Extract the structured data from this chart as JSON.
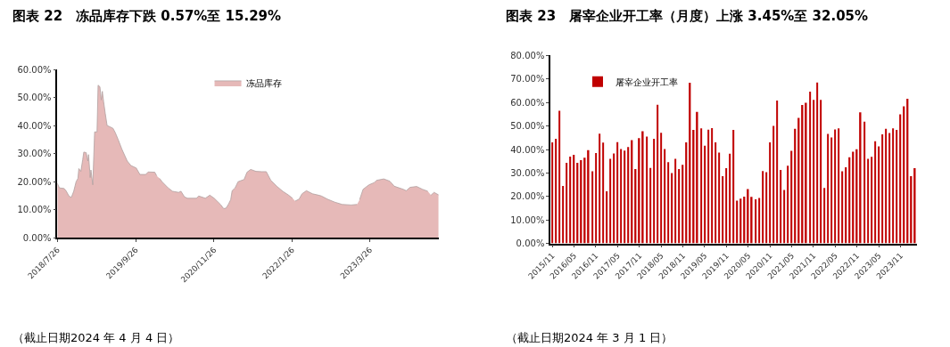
{
  "chart_data": [
    {
      "type": "area",
      "title": "图表 22　冻品库存下跌 0.57%至 15.29%",
      "annotations": [
        "（截止日期2024 年 4 月 4 日）"
      ],
      "legend": "top",
      "x": [
        "2018-07-26",
        "2018-08-06",
        "2018-08-31",
        "2018-09-11",
        "2018-09-27",
        "2018-10-10",
        "2018-10-23",
        "2018-11-05",
        "2018-11-15",
        "2018-11-20",
        "2018-12-01",
        "2018-12-11",
        "2018-12-17",
        "2018-12-30",
        "2019-01-08",
        "2019-01-12",
        "2019-01-21",
        "2019-01-25",
        "2019-02-04",
        "2019-02-14",
        "2019-02-27",
        "2019-03-05",
        "2019-03-15",
        "2019-03-22",
        "2019-03-28",
        "2019-04-04",
        "2019-04-13",
        "2019-04-23",
        "2019-05-25",
        "2019-06-07",
        "2019-06-24",
        "2019-07-13",
        "2019-08-11",
        "2019-08-31",
        "2019-09-29",
        "2019-10-19",
        "2019-11-20",
        "2019-12-03",
        "2020-01-08",
        "2020-01-19",
        "2020-01-25",
        "2020-02-03",
        "2020-02-17",
        "2020-03-21",
        "2020-04-14",
        "2020-05-17",
        "2020-05-30",
        "2020-06-18",
        "2020-07-04",
        "2020-08-22",
        "2020-09-04",
        "2020-10-10",
        "2020-11-03",
        "2020-11-27",
        "2020-12-30",
        "2021-01-18",
        "2021-01-31",
        "2021-02-13",
        "2021-02-25",
        "2021-03-05",
        "2021-03-21",
        "2021-04-06",
        "2021-04-26",
        "2021-05-09",
        "2021-05-25",
        "2021-06-14",
        "2021-07-13",
        "2021-08-14",
        "2021-09-07",
        "2021-10-02",
        "2021-11-03",
        "2021-12-06",
        "2022-01-07",
        "2022-01-28",
        "2022-02-02",
        "2022-02-12",
        "2022-03-05",
        "2022-03-21",
        "2022-04-14",
        "2022-05-17",
        "2022-06-19",
        "2022-07-05",
        "2022-08-06",
        "2022-09-16",
        "2022-10-26",
        "2022-12-14",
        "2023-01-15",
        "2023-01-24",
        "2023-01-29",
        "2023-02-17",
        "2023-03-21",
        "2023-04-19",
        "2023-05-01",
        "2023-06-10",
        "2023-07-13",
        "2023-08-06",
        "2023-09-24",
        "2023-10-10",
        "2023-10-31",
        "2023-12-06",
        "2024-01-07",
        "2024-02-05",
        "2024-02-14",
        "2024-02-22",
        "2024-03-10",
        "2024-04-04"
      ],
      "series": [
        {
          "name": "冻品库存",
          "color": "#e6b9b8",
          "values": [
            19.4,
            17.8,
            17.6,
            16.8,
            14.9,
            14.4,
            16.6,
            20,
            21.2,
            24.7,
            23.7,
            27.9,
            30.6,
            30.4,
            27.4,
            29.7,
            21.5,
            24.2,
            18.9,
            37.8,
            37.8,
            54.5,
            53.9,
            49.2,
            52.3,
            48.6,
            44.4,
            40.1,
            39.1,
            37.5,
            34.8,
            31.6,
            27.4,
            25.8,
            24.9,
            22.6,
            22.6,
            23.5,
            23.4,
            22.1,
            null,
            21.2,
            20,
            17.8,
            16.6,
            16.2,
            16.6,
            14.6,
            14.1,
            14.1,
            14.9,
            14.1,
            15.2,
            14.1,
            12,
            10.4,
            10.6,
            12,
            13.6,
            16.8,
            17.8,
            20,
            20.5,
            20.8,
            23.4,
            24.4,
            23.7,
            23.6,
            23.6,
            20.5,
            18.4,
            16.6,
            15.2,
            14.1,
            null,
            13.1,
            13.8,
            15.7,
            16.8,
            15.7,
            15.2,
            14.9,
            13.8,
            12.7,
            11.9,
            11.7,
            11.9,
            null,
            13.6,
            17.3,
            18.9,
            19.7,
            20.5,
            21,
            20.2,
            18.4,
            17.3,
            16.8,
            18,
            18.3,
            17.3,
            16.6,
            null,
            15.2,
            16.2,
            15.3
          ]
        }
      ],
      "xlim": [
        "2018-07-26",
        "2024-04-04"
      ],
      "xticks": [
        {
          "value": "2018-07-26",
          "label": "2018/7/26"
        },
        {
          "value": "2019-09-26",
          "label": "2019/9/26"
        },
        {
          "value": "2020-11-26",
          "label": "2020/11/26"
        },
        {
          "value": "2022-01-26",
          "label": "2022/1/26"
        },
        {
          "value": "2023-03-26",
          "label": "2023/3/26"
        }
      ],
      "ylim": [
        0,
        60
      ],
      "yticks": [
        {
          "value": 0,
          "label": "0.00%"
        },
        {
          "value": 10,
          "label": "10.00%"
        },
        {
          "value": 20,
          "label": "20.00%"
        },
        {
          "value": 30,
          "label": "30.00%"
        },
        {
          "value": 40,
          "label": "40.00%"
        },
        {
          "value": 50,
          "label": "50.00%"
        },
        {
          "value": 60,
          "label": "60.00%"
        }
      ]
    },
    {
      "type": "bar",
      "title": "图表 23　屠宰企业开工率（月度）上涨 3.45%至 32.05%",
      "annotations": [
        "（截止日期2024 年 3 月 1 日）"
      ],
      "legend": "top left",
      "categories": [
        "2015/11",
        null,
        null,
        null,
        null,
        null,
        "2016/05",
        null,
        null,
        null,
        null,
        null,
        "2016/11",
        null,
        null,
        null,
        null,
        null,
        "2017/05",
        null,
        null,
        null,
        null,
        null,
        "2017/11",
        null,
        null,
        null,
        null,
        null,
        "2018/05",
        null,
        null,
        null,
        null,
        null,
        "2018/11",
        null,
        null,
        null,
        null,
        null,
        "2019/05",
        null,
        null,
        null,
        null,
        null,
        "2019/11",
        null,
        null,
        null,
        null,
        null,
        "2020/05",
        null,
        null,
        null,
        null,
        null,
        "2020/11",
        null,
        null,
        null,
        null,
        null,
        "2021/05",
        null,
        null,
        null,
        null,
        null,
        "2021/11",
        null,
        null,
        null,
        null,
        null,
        "2022/05",
        null,
        null,
        null,
        null,
        null,
        "2022/11",
        null,
        null,
        null,
        null,
        null,
        "2023/05",
        null,
        null,
        null,
        null,
        null,
        "2023/11",
        null,
        null,
        null,
        null
      ],
      "series": [
        {
          "name": "屠宰企业开工率",
          "color": "#c00000",
          "values": [
            43,
            44.5,
            56.5,
            24.5,
            34.3,
            37,
            37.7,
            34.3,
            35.5,
            36.5,
            39.7,
            30.7,
            38.5,
            46.7,
            42.9,
            22.2,
            36,
            38.3,
            43.1,
            40.2,
            39.5,
            41,
            44,
            31.7,
            44.8,
            47.8,
            45.5,
            32.1,
            44.5,
            59,
            47.1,
            40.2,
            34.6,
            30,
            36,
            31.7,
            33.5,
            43,
            68.4,
            48.3,
            56,
            49,
            41.6,
            48.4,
            49.1,
            43,
            38.7,
            28.6,
            32,
            38.2,
            48.3,
            18.2,
            19.1,
            19.9,
            23.1,
            19.8,
            18.8,
            19.4,
            30.8,
            30.3,
            43,
            50,
            60.8,
            31.3,
            22.8,
            33.1,
            39.4,
            48.8,
            53.4,
            58.9,
            59.9,
            64.6,
            61.1,
            68.5,
            61.1,
            23.6,
            46.6,
            45.1,
            48.5,
            49,
            30.7,
            32.4,
            36.7,
            39.1,
            40.1,
            55.8,
            51.8,
            36,
            36.9,
            43.5,
            41.3,
            46.4,
            48.8,
            47,
            49,
            48.3,
            55,
            58.4,
            61.6,
            28.6,
            32
          ]
        }
      ],
      "ylim": [
        0,
        80
      ],
      "yticks": [
        {
          "value": 0,
          "label": "0.00%"
        },
        {
          "value": 10,
          "label": "10.00%"
        },
        {
          "value": 20,
          "label": "20.00%"
        },
        {
          "value": 30,
          "label": "30.00%"
        },
        {
          "value": 40,
          "label": "40.00%"
        },
        {
          "value": 50,
          "label": "50.00%"
        },
        {
          "value": 60,
          "label": "60.00%"
        },
        {
          "value": 70,
          "label": "70.00%"
        },
        {
          "value": 80,
          "label": "80.00%"
        }
      ]
    }
  ]
}
